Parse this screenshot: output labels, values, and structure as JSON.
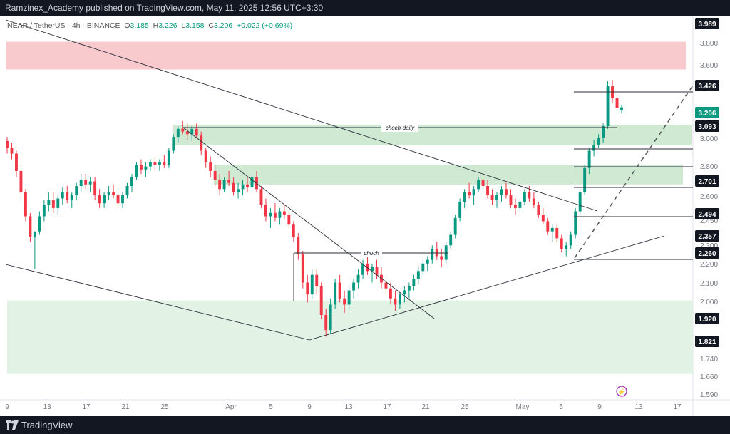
{
  "header": {
    "title": "Ramzinex_Academy published on TradingView.com, May 11, 2025 12:56 UTC+3:30"
  },
  "legend": {
    "symbol": "NEAR / TetherUS · 4h · BINANCE",
    "open_label": "O",
    "open": "3.185",
    "high_label": "H",
    "high": "3.226",
    "low_label": "L",
    "low": "3.158",
    "close_label": "C",
    "close": "3.206",
    "change": "+0.022 (+0.69%)"
  },
  "footer": {
    "brand": "TradingView"
  },
  "colors": {
    "up": "#089981",
    "down": "#f23645",
    "supply_zone": "#f8c9cd",
    "demand_zone": "#cfe9d3",
    "demand_zone_light": "#e2f2e4",
    "text": "#131722"
  },
  "chart_data": {
    "type": "candlestick",
    "title": "",
    "xlabel": "",
    "ylabel": "",
    "ylim": [
      1.56,
      4.02
    ],
    "y_scale": "log",
    "x_ticks": [
      "9",
      "13",
      "17",
      "21",
      "25",
      "Apr",
      "5",
      "9",
      "13",
      "17",
      "21",
      "25",
      "May",
      "5",
      "9",
      "13",
      "17"
    ],
    "y_ticks": [
      "3.800",
      "3.600",
      "2.800",
      "2.600",
      "2.450",
      "2.300",
      "2.200",
      "2.100",
      "2.000",
      "1.740",
      "1.660",
      "1.590"
    ],
    "price_labels": [
      {
        "value": "3.989",
        "style": "dark"
      },
      {
        "value": "3.426",
        "style": "dark"
      },
      {
        "value": "3.206",
        "style": "current"
      },
      {
        "value": "3.093",
        "style": "dark"
      },
      {
        "value": "3.000",
        "style": "plain"
      },
      {
        "value": "2.701",
        "style": "dark"
      },
      {
        "value": "2.494",
        "style": "dark"
      },
      {
        "value": "2.357",
        "style": "dark"
      },
      {
        "value": "2.260",
        "style": "dark"
      },
      {
        "value": "1.920",
        "style": "dark"
      },
      {
        "value": "1.821",
        "style": "dark"
      }
    ],
    "zones": [
      {
        "kind": "supply",
        "y_from": 3.52,
        "y_to": 3.77
      },
      {
        "kind": "demand",
        "y_from": 2.92,
        "y_to": 3.07
      },
      {
        "kind": "demand",
        "y_from": 2.65,
        "y_to": 2.78
      },
      {
        "kind": "demand-wide",
        "y_from": 1.66,
        "y_to": 1.99
      }
    ],
    "annotations": [
      {
        "text": "choch-daily",
        "y": 3.093
      },
      {
        "text": "choch",
        "y": 2.26
      }
    ],
    "series": [
      {
        "name": "",
        "values": [
          [
            2.95,
            2.98,
            2.86,
            2.9
          ],
          [
            2.9,
            2.94,
            2.82,
            2.86
          ],
          [
            2.86,
            2.88,
            2.7,
            2.74
          ],
          [
            2.74,
            2.77,
            2.55,
            2.6
          ],
          [
            2.6,
            2.62,
            2.42,
            2.45
          ],
          [
            2.45,
            2.47,
            2.3,
            2.33
          ],
          [
            2.33,
            2.35,
            2.15,
            2.36
          ],
          [
            2.36,
            2.48,
            2.34,
            2.45
          ],
          [
            2.45,
            2.55,
            2.42,
            2.52
          ],
          [
            2.52,
            2.6,
            2.48,
            2.55
          ],
          [
            2.55,
            2.6,
            2.47,
            2.5
          ],
          [
            2.5,
            2.58,
            2.46,
            2.56
          ],
          [
            2.56,
            2.63,
            2.52,
            2.6
          ],
          [
            2.6,
            2.64,
            2.53,
            2.55
          ],
          [
            2.55,
            2.6,
            2.5,
            2.58
          ],
          [
            2.58,
            2.66,
            2.55,
            2.64
          ],
          [
            2.64,
            2.72,
            2.6,
            2.68
          ],
          [
            2.68,
            2.72,
            2.62,
            2.65
          ],
          [
            2.65,
            2.7,
            2.6,
            2.67
          ],
          [
            2.67,
            2.7,
            2.55,
            2.58
          ],
          [
            2.58,
            2.62,
            2.5,
            2.53
          ],
          [
            2.53,
            2.6,
            2.5,
            2.58
          ],
          [
            2.58,
            2.64,
            2.55,
            2.6
          ],
          [
            2.6,
            2.65,
            2.56,
            2.58
          ],
          [
            2.58,
            2.62,
            2.5,
            2.53
          ],
          [
            2.53,
            2.6,
            2.5,
            2.58
          ],
          [
            2.58,
            2.66,
            2.56,
            2.64
          ],
          [
            2.64,
            2.72,
            2.6,
            2.7
          ],
          [
            2.7,
            2.8,
            2.68,
            2.78
          ],
          [
            2.78,
            2.82,
            2.72,
            2.75
          ],
          [
            2.75,
            2.8,
            2.7,
            2.77
          ],
          [
            2.77,
            2.82,
            2.74,
            2.8
          ],
          [
            2.8,
            2.84,
            2.75,
            2.78
          ],
          [
            2.78,
            2.82,
            2.74,
            2.8
          ],
          [
            2.8,
            2.85,
            2.76,
            2.78
          ],
          [
            2.78,
            2.9,
            2.76,
            2.88
          ],
          [
            2.88,
            3.0,
            2.86,
            2.98
          ],
          [
            2.98,
            3.06,
            2.94,
            3.04
          ],
          [
            3.04,
            3.1,
            3.0,
            3.02
          ],
          [
            3.02,
            3.08,
            2.96,
            3.0
          ],
          [
            3.0,
            3.06,
            2.95,
            3.04
          ],
          [
            3.04,
            3.08,
            2.97,
            2.99
          ],
          [
            2.99,
            3.02,
            2.85,
            2.88
          ],
          [
            2.88,
            2.9,
            2.76,
            2.8
          ],
          [
            2.8,
            2.84,
            2.7,
            2.74
          ],
          [
            2.74,
            2.78,
            2.64,
            2.68
          ],
          [
            2.68,
            2.72,
            2.58,
            2.62
          ],
          [
            2.62,
            2.7,
            2.6,
            2.68
          ],
          [
            2.68,
            2.74,
            2.64,
            2.66
          ],
          [
            2.66,
            2.7,
            2.58,
            2.6
          ],
          [
            2.6,
            2.66,
            2.56,
            2.62
          ],
          [
            2.62,
            2.68,
            2.58,
            2.65
          ],
          [
            2.65,
            2.7,
            2.6,
            2.63
          ],
          [
            2.63,
            2.72,
            2.6,
            2.7
          ],
          [
            2.7,
            2.74,
            2.6,
            2.62
          ],
          [
            2.62,
            2.64,
            2.5,
            2.52
          ],
          [
            2.52,
            2.56,
            2.42,
            2.45
          ],
          [
            2.45,
            2.5,
            2.38,
            2.47
          ],
          [
            2.47,
            2.53,
            2.42,
            2.44
          ],
          [
            2.44,
            2.5,
            2.4,
            2.48
          ],
          [
            2.48,
            2.52,
            2.43,
            2.46
          ],
          [
            2.46,
            2.48,
            2.38,
            2.4
          ],
          [
            2.4,
            2.42,
            2.3,
            2.33
          ],
          [
            2.33,
            2.35,
            2.2,
            2.23
          ],
          [
            2.23,
            2.25,
            2.05,
            2.08
          ],
          [
            2.08,
            2.12,
            1.98,
            2.02
          ],
          [
            2.02,
            2.15,
            2.0,
            2.12
          ],
          [
            2.12,
            2.15,
            2.02,
            2.06
          ],
          [
            2.06,
            2.08,
            1.9,
            1.92
          ],
          [
            1.92,
            1.95,
            1.82,
            1.85
          ],
          [
            1.85,
            2.0,
            1.83,
            1.97
          ],
          [
            1.97,
            2.1,
            1.95,
            2.08
          ],
          [
            2.08,
            2.12,
            1.98,
            2.0
          ],
          [
            2.0,
            2.04,
            1.93,
            1.97
          ],
          [
            1.97,
            2.06,
            1.95,
            2.04
          ],
          [
            2.04,
            2.1,
            2.0,
            2.08
          ],
          [
            2.08,
            2.15,
            2.05,
            2.12
          ],
          [
            2.12,
            2.2,
            2.1,
            2.18
          ],
          [
            2.18,
            2.22,
            2.12,
            2.14
          ],
          [
            2.14,
            2.18,
            2.08,
            2.16
          ],
          [
            2.16,
            2.2,
            2.1,
            2.12
          ],
          [
            2.12,
            2.16,
            2.05,
            2.08
          ],
          [
            2.08,
            2.12,
            2.02,
            2.05
          ],
          [
            2.05,
            2.08,
            1.97,
            2.0
          ],
          [
            2.0,
            2.04,
            1.94,
            1.97
          ],
          [
            1.97,
            2.03,
            1.95,
            2.02
          ],
          [
            2.02,
            2.06,
            1.98,
            2.04
          ],
          [
            2.04,
            2.08,
            2.0,
            2.06
          ],
          [
            2.06,
            2.12,
            2.04,
            2.1
          ],
          [
            2.1,
            2.16,
            2.07,
            2.14
          ],
          [
            2.14,
            2.2,
            2.12,
            2.18
          ],
          [
            2.18,
            2.22,
            2.14,
            2.2
          ],
          [
            2.2,
            2.28,
            2.18,
            2.26
          ],
          [
            2.26,
            2.3,
            2.2,
            2.22
          ],
          [
            2.22,
            2.26,
            2.16,
            2.2
          ],
          [
            2.2,
            2.3,
            2.18,
            2.28
          ],
          [
            2.28,
            2.36,
            2.26,
            2.34
          ],
          [
            2.34,
            2.46,
            2.32,
            2.44
          ],
          [
            2.44,
            2.56,
            2.42,
            2.54
          ],
          [
            2.54,
            2.62,
            2.5,
            2.6
          ],
          [
            2.6,
            2.66,
            2.56,
            2.58
          ],
          [
            2.58,
            2.64,
            2.52,
            2.62
          ],
          [
            2.62,
            2.7,
            2.6,
            2.68
          ],
          [
            2.68,
            2.72,
            2.62,
            2.64
          ],
          [
            2.64,
            2.68,
            2.56,
            2.58
          ],
          [
            2.58,
            2.62,
            2.52,
            2.55
          ],
          [
            2.55,
            2.6,
            2.5,
            2.58
          ],
          [
            2.58,
            2.64,
            2.54,
            2.62
          ],
          [
            2.62,
            2.66,
            2.56,
            2.58
          ],
          [
            2.58,
            2.62,
            2.5,
            2.52
          ],
          [
            2.52,
            2.56,
            2.46,
            2.5
          ],
          [
            2.5,
            2.56,
            2.48,
            2.54
          ],
          [
            2.54,
            2.62,
            2.52,
            2.6
          ],
          [
            2.6,
            2.64,
            2.54,
            2.56
          ],
          [
            2.56,
            2.6,
            2.5,
            2.52
          ],
          [
            2.52,
            2.54,
            2.44,
            2.46
          ],
          [
            2.46,
            2.5,
            2.4,
            2.42
          ],
          [
            2.42,
            2.44,
            2.34,
            2.36
          ],
          [
            2.36,
            2.4,
            2.3,
            2.38
          ],
          [
            2.38,
            2.4,
            2.3,
            2.32
          ],
          [
            2.32,
            2.34,
            2.24,
            2.26
          ],
          [
            2.26,
            2.3,
            2.22,
            2.28
          ],
          [
            2.28,
            2.36,
            2.26,
            2.34
          ],
          [
            2.34,
            2.5,
            2.32,
            2.48
          ],
          [
            2.48,
            2.62,
            2.46,
            2.6
          ],
          [
            2.6,
            2.78,
            2.58,
            2.76
          ],
          [
            2.76,
            2.9,
            2.72,
            2.88
          ],
          [
            2.88,
            2.96,
            2.84,
            2.92
          ],
          [
            2.92,
            3.0,
            2.9,
            2.97
          ],
          [
            2.97,
            3.08,
            2.94,
            3.06
          ],
          [
            3.06,
            3.42,
            3.04,
            3.38
          ],
          [
            3.38,
            3.43,
            3.24,
            3.28
          ],
          [
            3.28,
            3.3,
            3.16,
            3.2
          ],
          [
            3.185,
            3.226,
            3.158,
            3.206
          ]
        ]
      }
    ]
  }
}
